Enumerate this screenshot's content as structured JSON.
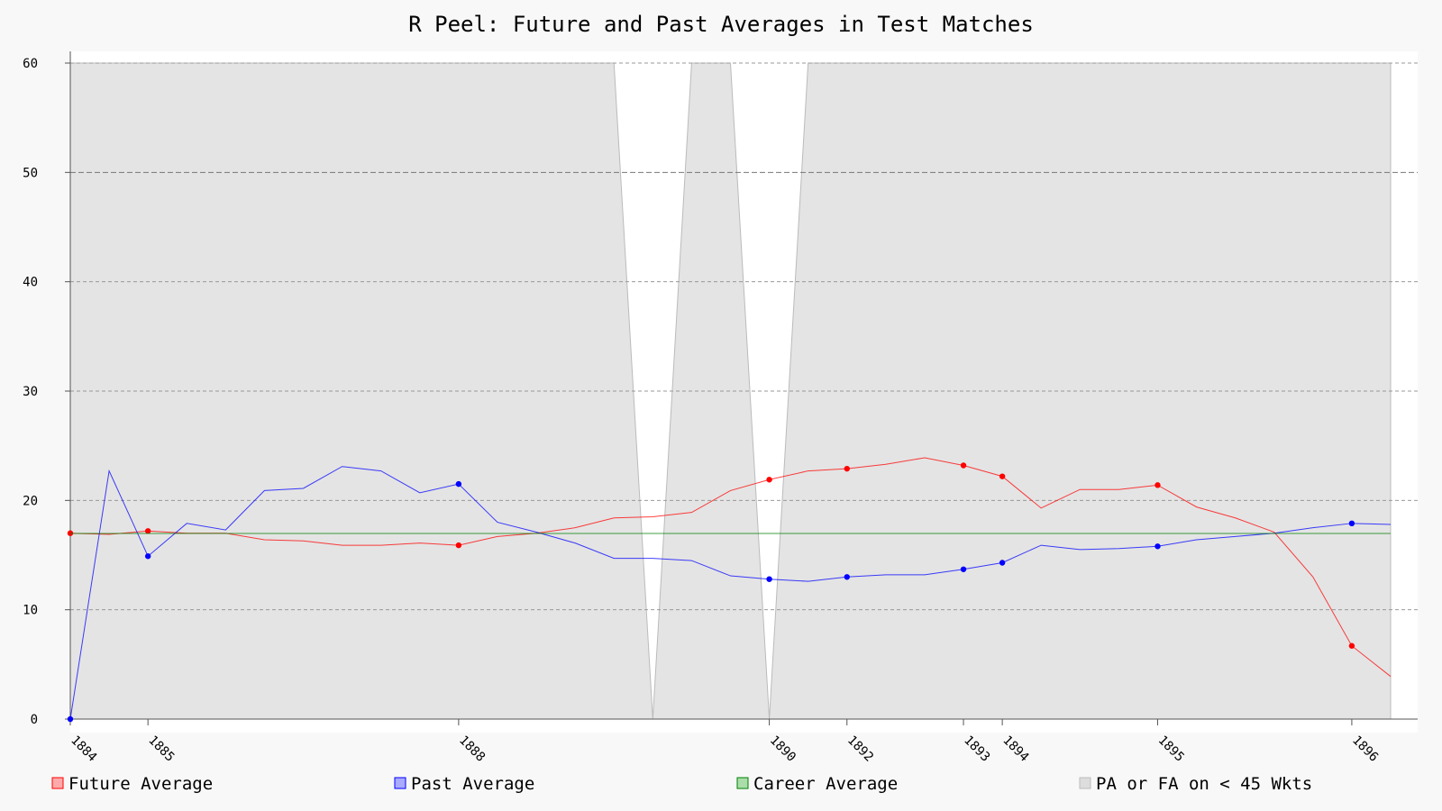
{
  "chart_data": {
    "type": "line",
    "title": "R Peel: Future and Past Averages in Test Matches",
    "xlabel": "",
    "ylabel": "",
    "ylim": [
      0,
      60
    ],
    "yticks": [
      0,
      10,
      20,
      30,
      40,
      50,
      60
    ],
    "grid": true,
    "legend_position": "bottom",
    "match_count": 35,
    "x_tick_labels": [
      {
        "match": 1,
        "label": "1884"
      },
      {
        "match": 3,
        "label": "1885"
      },
      {
        "match": 11,
        "label": "1888"
      },
      {
        "match": 19,
        "label": "1890"
      },
      {
        "match": 21,
        "label": "1892"
      },
      {
        "match": 24,
        "label": "1893"
      },
      {
        "match": 25,
        "label": "1894"
      },
      {
        "match": 29,
        "label": "1895"
      },
      {
        "match": 34,
        "label": "1896"
      }
    ],
    "series": [
      {
        "name": "Future Average",
        "color": "#ff0000",
        "values": [
          17.0,
          16.9,
          17.2,
          17.0,
          17.0,
          16.4,
          16.3,
          15.9,
          15.9,
          16.1,
          15.9,
          16.7,
          17.0,
          17.5,
          18.4,
          18.5,
          18.9,
          20.9,
          21.9,
          22.7,
          22.9,
          23.3,
          23.9,
          23.2,
          22.2,
          19.3,
          21.0,
          21.0,
          21.4,
          19.4,
          18.4,
          17.1,
          13.0,
          6.7,
          3.9
        ],
        "markers": [
          1,
          3,
          11,
          19,
          21,
          24,
          25,
          29,
          34
        ]
      },
      {
        "name": "Past Average",
        "color": "#0000ff",
        "values": [
          0.0,
          22.7,
          14.9,
          17.9,
          17.3,
          20.9,
          21.1,
          23.1,
          22.7,
          20.7,
          21.5,
          18.0,
          17.1,
          16.1,
          14.7,
          14.7,
          14.5,
          13.1,
          12.8,
          12.6,
          13.0,
          13.2,
          13.2,
          13.7,
          14.3,
          15.9,
          15.5,
          15.6,
          15.8,
          16.4,
          16.7,
          17.0,
          17.5,
          17.9,
          17.8
        ],
        "markers": [
          1,
          3,
          11,
          19,
          21,
          24,
          25,
          29,
          34
        ]
      },
      {
        "name": "Career Average",
        "color": "#008000",
        "values": [
          16.98,
          16.98,
          16.98,
          16.98,
          16.98,
          16.98,
          16.98,
          16.98,
          16.98,
          16.98,
          16.98,
          16.98,
          16.98,
          16.98,
          16.98,
          16.98,
          16.98,
          16.98,
          16.98,
          16.98,
          16.98,
          16.98,
          16.98,
          16.98,
          16.98,
          16.98,
          16.98,
          16.98,
          16.98,
          16.98,
          16.98,
          16.98,
          16.98,
          16.98,
          16.98
        ]
      },
      {
        "name": "PA or FA on < 45 Wkts",
        "color": "#dddddd",
        "type": "area",
        "values": [
          60,
          60,
          60,
          60,
          60,
          60,
          60,
          60,
          60,
          60,
          60,
          60,
          60,
          60,
          60,
          0,
          60,
          60,
          0,
          60,
          60,
          60,
          60,
          60,
          60,
          60,
          60,
          60,
          60,
          60,
          60,
          60,
          60,
          60,
          60
        ],
        "shade_top": 60
      }
    ]
  },
  "legend": [
    {
      "label": "Future Average",
      "fill": "#ffaaaa",
      "stroke": "#ff0000"
    },
    {
      "label": "Past Average",
      "fill": "#aaaaff",
      "stroke": "#0000ff"
    },
    {
      "label": "Career Average",
      "fill": "#aaddaa",
      "stroke": "#008000"
    },
    {
      "label": "PA or FA on < 45 Wkts",
      "fill": "#dddddd",
      "stroke": "#bbbbbb"
    }
  ]
}
